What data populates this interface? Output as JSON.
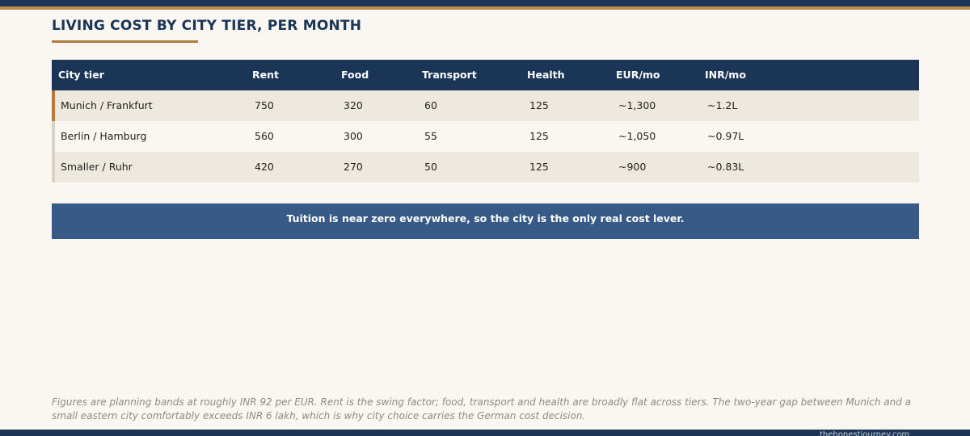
{
  "header": {
    "title": "LIVING COST BY CITY TIER, PER MONTH"
  },
  "table": {
    "columns": [
      "City tier",
      "Rent",
      "Food",
      "Transport",
      "Health",
      "EUR/mo",
      "INR/mo"
    ],
    "rows": [
      [
        "Munich / Frankfurt",
        "750",
        "320",
        "60",
        "125",
        "~1,300",
        "~1.2L"
      ],
      [
        "Berlin / Hamburg",
        "560",
        "300",
        "55",
        "125",
        "~1,050",
        "~0.97L"
      ],
      [
        "Smaller / Ruhr",
        "420",
        "270",
        "50",
        "125",
        "~900",
        "~0.83L"
      ]
    ]
  },
  "callout": "Tuition is near zero everywhere, so the city is the only real cost lever.",
  "footnote": "Figures are planning bands at roughly INR 92 per EUR. Rent is the swing factor; food, transport and health are broadly flat across tiers. The two-year gap between Munich and a small eastern city comfortably exceeds INR 6 lakh, which is why city choice carries the German cost decision.",
  "footer": "thehonestjourney.com"
}
